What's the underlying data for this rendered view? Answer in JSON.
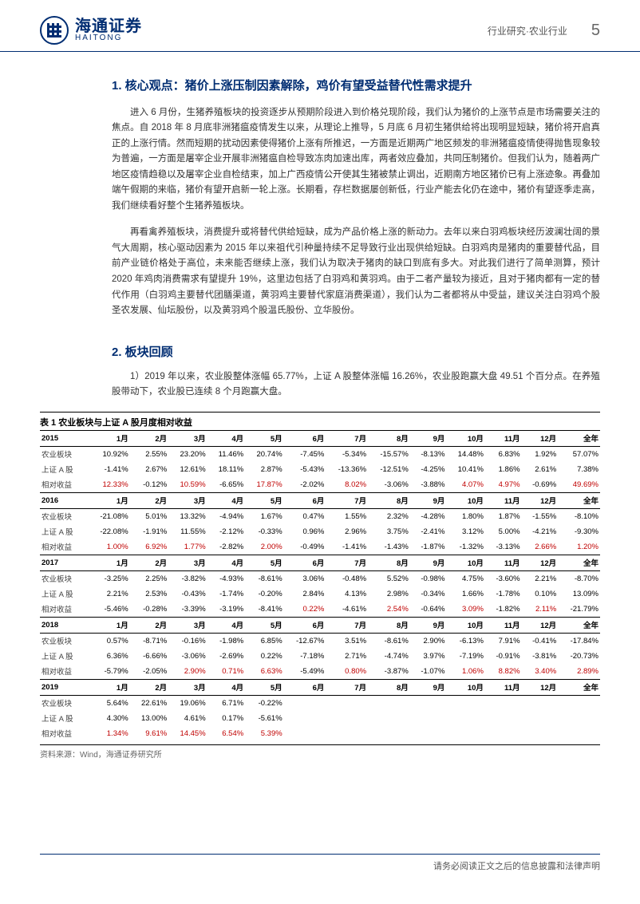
{
  "header": {
    "logo_cn": "海通证券",
    "logo_en": "HAITONG",
    "category": "行业研究·农业行业",
    "page": "5"
  },
  "section1": {
    "title": "1. 核心观点：猪价上涨压制因素解除，鸡价有望受益替代性需求提升",
    "p1": "进入 6 月份，生猪养殖板块的投资逐步从预期阶段进入到价格兑现阶段，我们认为猪价的上涨节点是市场需要关注的焦点。自 2018 年 8 月底非洲猪瘟疫情发生以来，从理论上推导，5 月底 6 月初生猪供给将出现明显短缺，猪价将开启真正的上涨行情。然而短期的扰动因素使得猪价上涨有所推迟，一方面是近期两广地区频发的非洲猪瘟疫情使得抛售现象较为普遍，一方面是屠宰企业开展非洲猪瘟自检导致冻肉加速出库，两者效应叠加，共同压制猪价。但我们认为，随着两广地区疫情趋稳以及屠宰企业自检结束，加上广西疫情公开使其生猪被禁止调出，近期南方地区猪价已有上涨迹象。再叠加端午假期的来临，猪价有望开启新一轮上涨。长期看，存栏数据屡创新低，行业产能去化仍在途中，猪价有望逐季走高，我们继续看好整个生猪养殖板块。",
    "p2": "再看禽养殖板块，消费提升或将替代供给短缺，成为产品价格上涨的新动力。去年以来白羽鸡板块经历波澜壮阔的景气大周期，核心驱动因素为 2015 年以来祖代引种量持续不足导致行业出现供给短缺。白羽鸡肉是猪肉的重要替代品，目前产业链价格处于高位，未来能否继续上涨，我们认为取决于猪肉的缺口到底有多大。对此我们进行了简单测算，预计 2020 年鸡肉消费需求有望提升 19%，这里边包括了白羽鸡和黄羽鸡。由于二者产量较为接近，且对于猪肉都有一定的替代作用（白羽鸡主要替代团膳渠道，黄羽鸡主要替代家庭消费渠道），我们认为二者都将从中受益，建议关注白羽鸡个股圣农发展、仙坛股份，以及黄羽鸡个股温氏股份、立华股份。"
  },
  "section2": {
    "title": "2. 板块回顾",
    "p1": "1）2019 年以来，农业股整体涨幅 65.77%，上证 A 股整体涨幅 16.26%，农业股跑赢大盘 49.51 个百分点。在养殖股带动下，农业股已连续 8 个月跑赢大盘。"
  },
  "table": {
    "caption": "表 1 农业板块与上证 A 股月度相对收益",
    "columns": [
      "1月",
      "2月",
      "3月",
      "4月",
      "5月",
      "6月",
      "7月",
      "8月",
      "9月",
      "10月",
      "11月",
      "12月",
      "全年"
    ],
    "row_labels": [
      "农业板块",
      "上证 A 股",
      "相对收益"
    ],
    "years": [
      {
        "year": "2015",
        "rows": [
          [
            "10.92%",
            "2.55%",
            "23.20%",
            "11.46%",
            "20.74%",
            "-7.45%",
            "-5.34%",
            "-15.57%",
            "-8.13%",
            "14.48%",
            "6.83%",
            "1.92%",
            "57.07%"
          ],
          [
            "-1.41%",
            "2.67%",
            "12.61%",
            "18.11%",
            "2.87%",
            "-5.43%",
            "-13.36%",
            "-12.51%",
            "-4.25%",
            "10.41%",
            "1.86%",
            "2.61%",
            "7.38%"
          ],
          [
            "12.33%",
            "-0.12%",
            "10.59%",
            "-6.65%",
            "17.87%",
            "-2.02%",
            "8.02%",
            "-3.06%",
            "-3.88%",
            "4.07%",
            "4.97%",
            "-0.69%",
            "49.69%"
          ]
        ],
        "red": [
          [],
          [],
          [
            0,
            2,
            4,
            6,
            9,
            10,
            12
          ]
        ]
      },
      {
        "year": "2016",
        "rows": [
          [
            "-21.08%",
            "5.01%",
            "13.32%",
            "-4.94%",
            "1.67%",
            "0.47%",
            "1.55%",
            "2.32%",
            "-4.28%",
            "1.80%",
            "1.87%",
            "-1.55%",
            "-8.10%"
          ],
          [
            "-22.08%",
            "-1.91%",
            "11.55%",
            "-2.12%",
            "-0.33%",
            "0.96%",
            "2.96%",
            "3.75%",
            "-2.41%",
            "3.12%",
            "5.00%",
            "-4.21%",
            "-9.30%"
          ],
          [
            "1.00%",
            "6.92%",
            "1.77%",
            "-2.82%",
            "2.00%",
            "-0.49%",
            "-1.41%",
            "-1.43%",
            "-1.87%",
            "-1.32%",
            "-3.13%",
            "2.66%",
            "1.20%"
          ]
        ],
        "red": [
          [],
          [],
          [
            0,
            1,
            2,
            4,
            11,
            12
          ]
        ]
      },
      {
        "year": "2017",
        "rows": [
          [
            "-3.25%",
            "2.25%",
            "-3.82%",
            "-4.93%",
            "-8.61%",
            "3.06%",
            "-0.48%",
            "5.52%",
            "-0.98%",
            "4.75%",
            "-3.60%",
            "2.21%",
            "-8.70%"
          ],
          [
            "2.21%",
            "2.53%",
            "-0.43%",
            "-1.74%",
            "-0.20%",
            "2.84%",
            "4.13%",
            "2.98%",
            "-0.34%",
            "1.66%",
            "-1.78%",
            "0.10%",
            "13.09%"
          ],
          [
            "-5.46%",
            "-0.28%",
            "-3.39%",
            "-3.19%",
            "-8.41%",
            "0.22%",
            "-4.61%",
            "2.54%",
            "-0.64%",
            "3.09%",
            "-1.82%",
            "2.11%",
            "-21.79%"
          ]
        ],
        "red": [
          [],
          [],
          [
            5,
            7,
            9,
            11
          ]
        ]
      },
      {
        "year": "2018",
        "rows": [
          [
            "0.57%",
            "-8.71%",
            "-0.16%",
            "-1.98%",
            "6.85%",
            "-12.67%",
            "3.51%",
            "-8.61%",
            "2.90%",
            "-6.13%",
            "7.91%",
            "-0.41%",
            "-17.84%"
          ],
          [
            "6.36%",
            "-6.66%",
            "-3.06%",
            "-2.69%",
            "0.22%",
            "-7.18%",
            "2.71%",
            "-4.74%",
            "3.97%",
            "-7.19%",
            "-0.91%",
            "-3.81%",
            "-20.73%"
          ],
          [
            "-5.79%",
            "-2.05%",
            "2.90%",
            "0.71%",
            "6.63%",
            "-5.49%",
            "0.80%",
            "-3.87%",
            "-1.07%",
            "1.06%",
            "8.82%",
            "3.40%",
            "2.89%"
          ]
        ],
        "red": [
          [],
          [],
          [
            2,
            3,
            4,
            6,
            9,
            10,
            11,
            12
          ]
        ]
      },
      {
        "year": "2019",
        "rows": [
          [
            "5.64%",
            "22.61%",
            "19.06%",
            "6.71%",
            "-0.22%"
          ],
          [
            "4.30%",
            "13.00%",
            "4.61%",
            "0.17%",
            "-5.61%"
          ],
          [
            "1.34%",
            "9.61%",
            "14.45%",
            "6.54%",
            "5.39%"
          ]
        ],
        "red": [
          [],
          [],
          [
            0,
            1,
            2,
            3,
            4
          ]
        ]
      }
    ],
    "source": "资料来源：Wind，海通证券研究所"
  },
  "footer": "请务必阅读正文之后的信息披露和法律声明",
  "colors": {
    "brand": "#002d72",
    "red": "#c00000",
    "text": "#333333"
  }
}
